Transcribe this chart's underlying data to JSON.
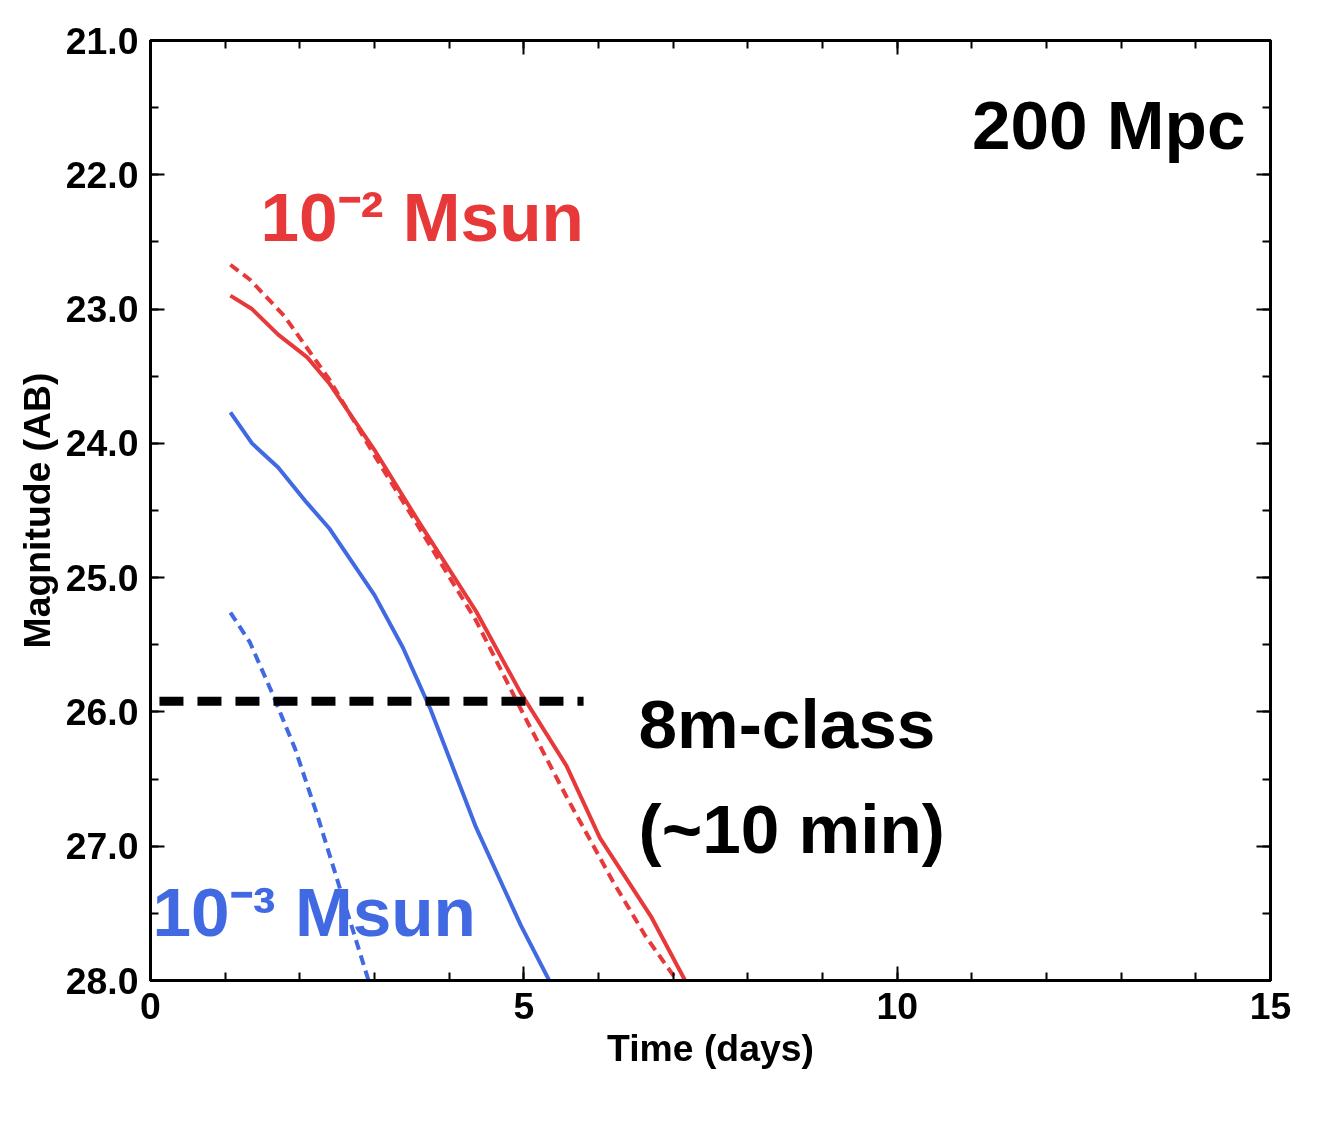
{
  "chart_data": {
    "type": "line",
    "xlabel": "Time (days)",
    "ylabel": "Magnitude (AB)",
    "xlim": [
      0,
      15
    ],
    "ylim": [
      28.0,
      21.0
    ],
    "xticks": [
      0,
      5,
      10,
      15
    ],
    "yticks": [
      {
        "value": 21,
        "label": "21.0"
      },
      {
        "value": 22,
        "label": "22.0"
      },
      {
        "value": 23,
        "label": "23.0"
      },
      {
        "value": 24,
        "label": "24.0"
      },
      {
        "value": 25,
        "label": "25.0"
      },
      {
        "value": 26,
        "label": "26.0"
      },
      {
        "value": 27,
        "label": "27.0"
      },
      {
        "value": 28,
        "label": "28.0"
      }
    ],
    "grid": false,
    "marker": "none",
    "series": [
      {
        "name": "10⁻² Msun",
        "color": "#e8393a",
        "line_style": "solid",
        "x": [
          1.07,
          1.36,
          1.71,
          2.1,
          2.39,
          3.0,
          3.6,
          4.36,
          4.96,
          5.57,
          6.02,
          6.7,
          7.16
        ],
        "values": [
          22.9,
          23.0,
          23.19,
          23.36,
          23.55,
          24.05,
          24.59,
          25.25,
          25.86,
          26.4,
          26.94,
          27.52,
          28.0
        ]
      },
      {
        "color": "#e8393a",
        "line_style": "dashed",
        "x": [
          1.07,
          1.33,
          1.79,
          2.39,
          3.0,
          3.6,
          4.36,
          4.96,
          5.57,
          6.18,
          6.63,
          7.05
        ],
        "values": [
          22.67,
          22.78,
          23.05,
          23.52,
          24.09,
          24.63,
          25.32,
          25.98,
          26.63,
          27.25,
          27.67,
          28.0
        ]
      },
      {
        "name": "10⁻³ Msun",
        "color": "#4169e1",
        "line_style": "solid",
        "x": [
          1.07,
          1.36,
          1.71,
          2.09,
          2.39,
          3.0,
          3.38,
          3.75,
          4.36,
          4.96,
          5.34
        ],
        "values": [
          23.77,
          24.0,
          24.18,
          24.44,
          24.63,
          25.13,
          25.52,
          25.98,
          26.86,
          27.59,
          28.0
        ]
      },
      {
        "color": "#4169e1",
        "line_style": "dashed",
        "x": [
          1.07,
          1.33,
          1.63,
          1.94,
          2.24,
          2.54,
          2.92
        ],
        "values": [
          25.26,
          25.48,
          25.86,
          26.28,
          26.78,
          27.32,
          28.0
        ]
      },
      {
        "color": "#000000",
        "line_style": "dashed",
        "x": [
          0.12,
          5.8
        ],
        "values": [
          25.92,
          25.92
        ]
      }
    ],
    "annotations": [
      "200 Mpc",
      {
        "text": "8m-class\n(~10 min)",
        "x": 5.8,
        "y": 25.92
      }
    ]
  }
}
